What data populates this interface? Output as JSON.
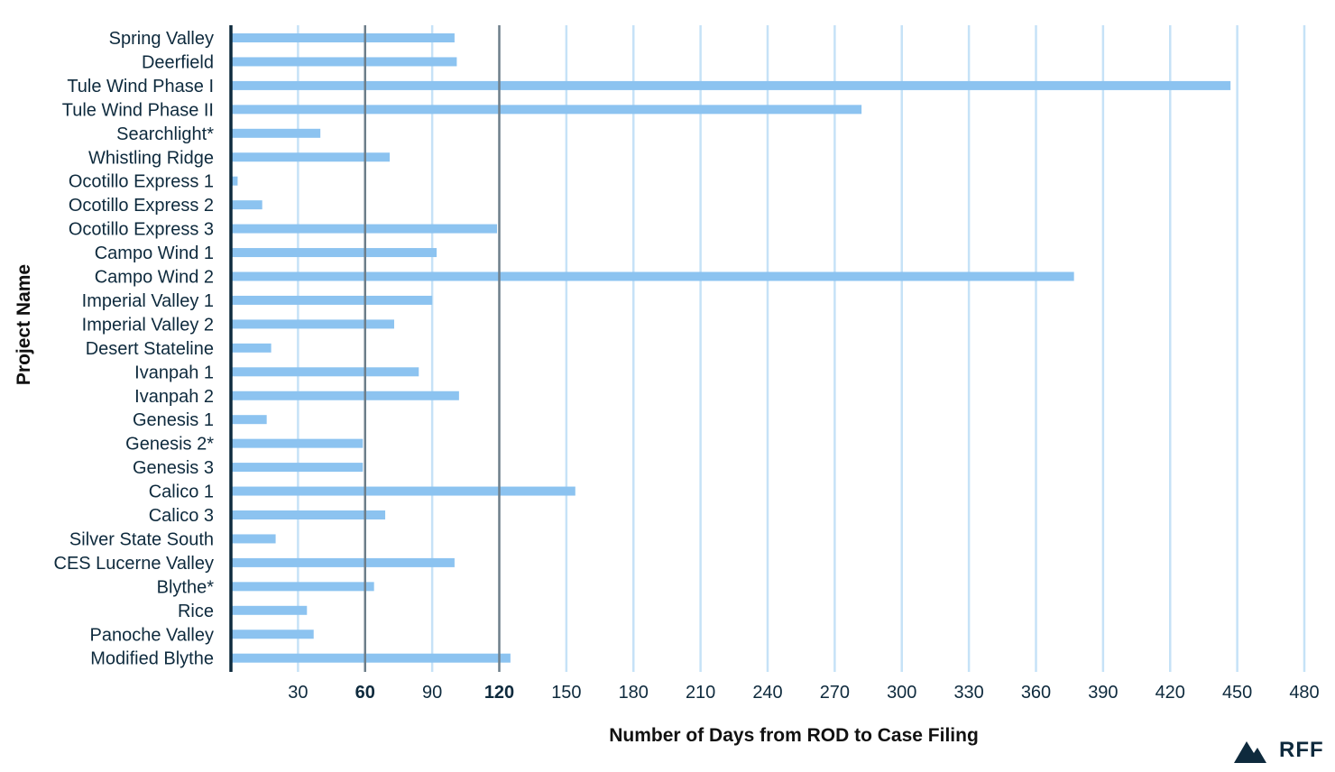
{
  "chart_data": {
    "type": "bar",
    "orientation": "horizontal",
    "ylabel": "Project Name",
    "xlabel": "Number of Days from ROD to Case Filing",
    "categories": [
      "Spring Valley",
      "Deerfield",
      "Tule Wind Phase I",
      "Tule Wind Phase II",
      "Searchlight*",
      "Whistling Ridge",
      "Ocotillo Express 1",
      "Ocotillo Express 2",
      "Ocotillo Express 3",
      "Campo Wind 1",
      "Campo Wind 2",
      "Imperial Valley 1",
      "Imperial Valley 2",
      "Desert Stateline",
      "Ivanpah 1",
      "Ivanpah 2",
      "Genesis 1",
      "Genesis 2*",
      "Genesis 3",
      "Calico 1",
      "Calico 3",
      "Silver State South",
      "CES Lucerne Valley",
      "Blythe*",
      "Rice",
      "Panoche Valley",
      "Modified Blythe"
    ],
    "values": [
      100,
      101,
      447,
      282,
      40,
      71,
      3,
      14,
      119,
      92,
      377,
      90,
      73,
      18,
      84,
      102,
      16,
      59,
      59,
      154,
      69,
      20,
      100,
      64,
      34,
      37,
      125
    ],
    "xlim": [
      0,
      480
    ],
    "xticks": [
      30,
      60,
      90,
      120,
      150,
      180,
      210,
      240,
      270,
      300,
      330,
      360,
      390,
      420,
      450,
      480
    ],
    "xtick_labels": [
      "30",
      "60",
      "90",
      "120",
      "150",
      "180",
      "210",
      "240",
      "270",
      "300",
      "330",
      "360",
      "390",
      "420",
      "450",
      "480"
    ],
    "bold_ticks": [
      60,
      120
    ],
    "reference_lines": [
      60,
      120
    ],
    "grid": true,
    "colors": {
      "bar": "#8cc3f0",
      "grid": "#c6e2f7",
      "reference": "#6d7e8a",
      "axis": "#0e2a3d",
      "text": "#0e2a3d"
    }
  },
  "logo": {
    "text": "RFF"
  }
}
